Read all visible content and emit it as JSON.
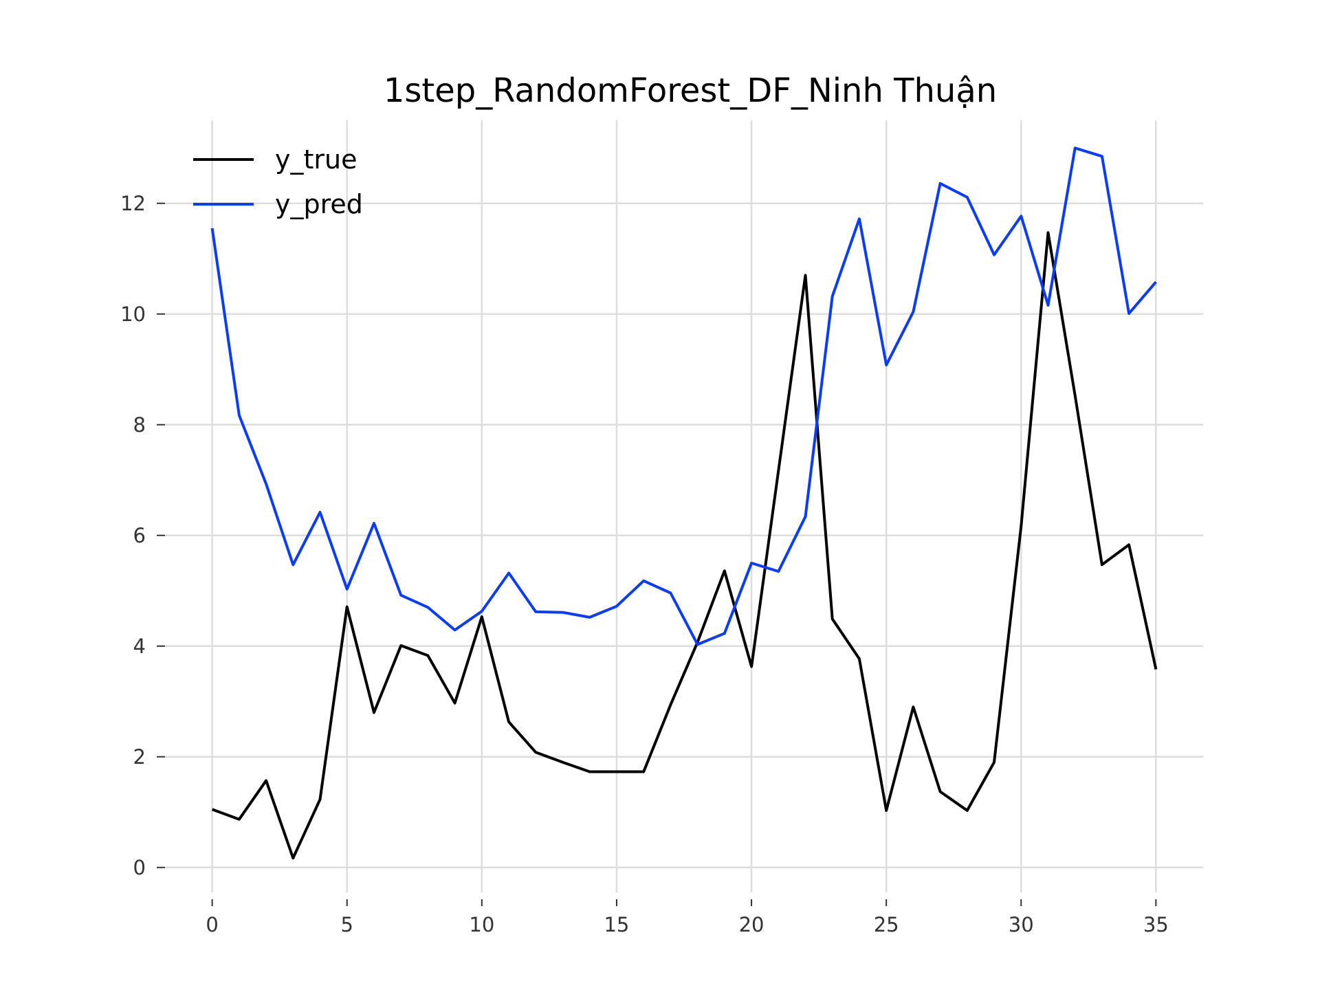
{
  "chart_data": {
    "type": "line",
    "title": "1step_RandomForest_DF_Ninh Thuận",
    "xlabel": "",
    "ylabel": "",
    "xlim": [
      -1.75,
      36.75
    ],
    "ylim": [
      -0.45,
      13.5
    ],
    "x_ticks": [
      0,
      5,
      10,
      15,
      20,
      25,
      30,
      35
    ],
    "y_ticks": [
      0,
      2,
      4,
      6,
      8,
      10,
      12
    ],
    "grid": true,
    "legend_position": "top-left",
    "x": [
      0,
      1,
      2,
      3,
      4,
      5,
      6,
      7,
      8,
      9,
      10,
      11,
      12,
      13,
      14,
      15,
      16,
      17,
      18,
      19,
      20,
      21,
      22,
      23,
      24,
      25,
      26,
      27,
      28,
      29,
      30,
      31,
      32,
      33,
      34,
      35
    ],
    "series": [
      {
        "name": "y_true",
        "color": "#000000",
        "values": [
          1.05,
          0.87,
          1.57,
          0.17,
          1.23,
          4.71,
          2.8,
          4.01,
          3.83,
          2.97,
          4.53,
          2.63,
          2.08,
          1.9,
          1.73,
          1.73,
          1.73,
          2.94,
          4.07,
          5.36,
          3.63,
          7.17,
          10.7,
          4.49,
          3.77,
          1.03,
          2.9,
          1.37,
          1.03,
          1.9,
          6.17,
          11.47,
          8.53,
          5.47,
          5.83,
          3.58
        ]
      },
      {
        "name": "y_pred",
        "color": "#0a3cff",
        "values": [
          11.55,
          8.17,
          6.93,
          5.47,
          6.42,
          5.03,
          6.22,
          4.92,
          4.7,
          4.29,
          4.63,
          5.32,
          4.62,
          4.61,
          4.52,
          4.72,
          5.18,
          4.96,
          4.03,
          4.23,
          5.5,
          5.35,
          6.34,
          10.32,
          11.72,
          9.08,
          10.04,
          12.36,
          12.11,
          11.07,
          11.77,
          10.16,
          13.0,
          12.85,
          10.01,
          10.58
        ]
      }
    ]
  }
}
